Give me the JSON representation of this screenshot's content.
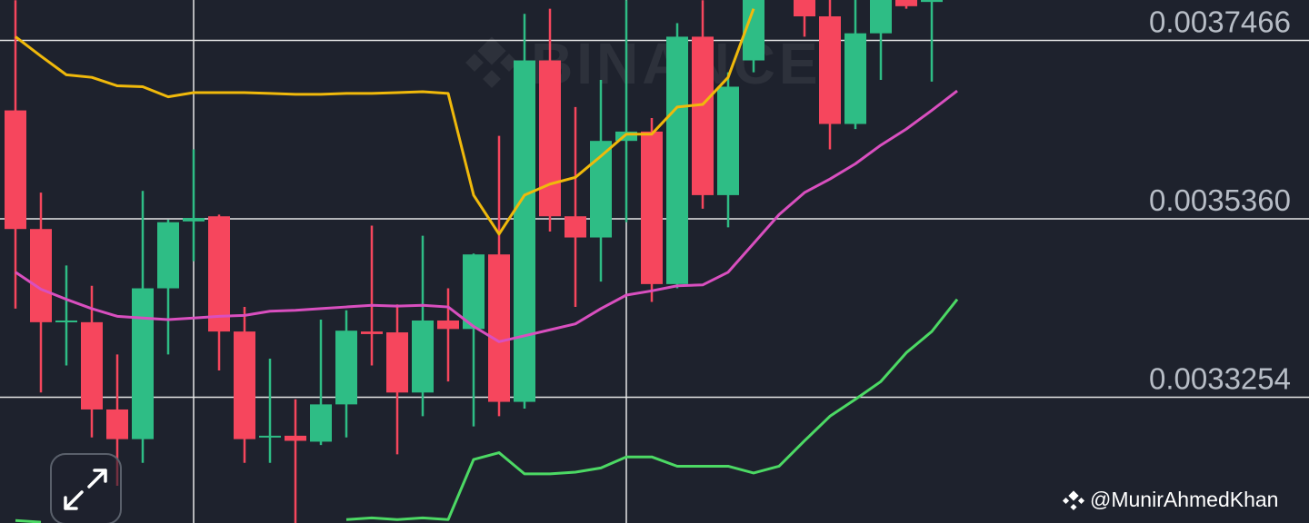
{
  "chart_data": {
    "type": "candlestick",
    "watermark": "BINANCE",
    "credit": "@MunirAhmedKhan",
    "categories": [
      null,
      null,
      null,
      null,
      null,
      null,
      null,
      null,
      null,
      null,
      null,
      null,
      null,
      null,
      null,
      null,
      null,
      null,
      null,
      null,
      null,
      null,
      null,
      null,
      null,
      null,
      null,
      null,
      null,
      null,
      null,
      null,
      null,
      null,
      null,
      null,
      null,
      null
    ],
    "candles": {
      "up_color": "#2ebd85",
      "down_color": "#f6465d",
      "open": [
        0.003664,
        0.003524,
        0.003414,
        0.003414,
        0.003311,
        0.003276,
        0.003454,
        0.003533,
        0.003539,
        0.003403,
        0.003278,
        0.00328,
        0.003273,
        0.003317,
        0.003403,
        0.003402,
        0.003331,
        0.003416,
        0.003406,
        0.003494,
        0.00332,
        0.003723,
        0.003539,
        0.003514,
        0.003628,
        0.003639,
        0.003459,
        0.003751,
        0.003564,
        0.003723,
        null,
        0.0038,
        0.003775,
        0.003648,
        0.003755,
        0.003798,
        0.003792,
        null
      ],
      "high": [
        0.003794,
        0.003567,
        0.003481,
        0.003457,
        0.003376,
        0.003569,
        0.003535,
        0.003618,
        0.003541,
        0.003432,
        0.003371,
        0.003323,
        0.003417,
        0.003428,
        0.003528,
        0.003435,
        0.003516,
        0.003454,
        0.003495,
        0.003634,
        0.003778,
        0.003784,
        0.003668,
        0.0037,
        0.003794,
        0.003655,
        0.003767,
        0.003794,
        0.003709,
        0.003805,
        null,
        0.003805,
        0.0038,
        0.0038,
        0.003805,
        0.003805,
        0.003805,
        null
      ],
      "low": [
        0.00343,
        0.003331,
        0.003363,
        0.003278,
        0.003221,
        0.003248,
        0.003376,
        0.003486,
        0.003357,
        0.003248,
        0.003248,
        0.003177,
        0.003269,
        0.003278,
        0.003363,
        0.003258,
        0.003303,
        0.003344,
        0.003291,
        0.003303,
        0.003312,
        0.003521,
        0.003432,
        0.003462,
        0.003532,
        0.003438,
        0.003454,
        0.003548,
        0.003526,
        0.003709,
        null,
        0.003751,
        0.003618,
        0.003642,
        0.0037,
        0.003784,
        0.003698,
        null
      ],
      "close": [
        0.003524,
        0.003414,
        0.003416,
        0.003311,
        0.003276,
        0.003454,
        0.003532,
        0.003537,
        0.003403,
        0.003276,
        0.00328,
        0.003274,
        0.003317,
        0.003404,
        0.0034,
        0.003331,
        0.003416,
        0.003406,
        0.003494,
        0.00332,
        0.003723,
        0.003539,
        0.003514,
        0.003628,
        0.003639,
        0.003459,
        0.003751,
        0.003564,
        0.003692,
        0.0038,
        null,
        0.003775,
        0.003648,
        0.003755,
        0.0038,
        0.003787,
        0.0038,
        null
      ]
    },
    "series": [
      {
        "color": "#f0b90b",
        "values": [
          0.003751,
          0.003728,
          0.003706,
          0.003703,
          0.003693,
          0.003692,
          0.00368,
          0.003685,
          0.003685,
          0.003685,
          0.003684,
          0.003683,
          0.003683,
          0.003684,
          0.003684,
          0.003685,
          0.003686,
          0.003684,
          0.003564,
          0.003518,
          0.003564,
          0.003577,
          0.003585,
          0.00361,
          0.003636,
          0.003636,
          0.003668,
          0.003671,
          0.003703,
          0.003784,
          null,
          null,
          null,
          null,
          null,
          null,
          null,
          null
        ]
      },
      {
        "color": "#d94fbf",
        "values": [
          0.003473,
          0.003453,
          0.003441,
          0.00343,
          0.003421,
          0.003419,
          0.003417,
          0.003419,
          0.003421,
          0.003422,
          0.003427,
          0.003428,
          0.00343,
          0.003432,
          0.003434,
          0.003433,
          0.003434,
          0.003432,
          0.003409,
          0.003391,
          0.003398,
          0.003405,
          0.003412,
          0.00343,
          0.003446,
          0.003451,
          0.003457,
          0.003458,
          0.003473,
          0.003507,
          0.003541,
          0.003567,
          0.003583,
          0.003601,
          0.003623,
          0.003642,
          0.003664,
          0.003687
        ]
      },
      {
        "color": "#4cd964",
        "values": [
          0.00318,
          0.003178,
          null,
          null,
          null,
          null,
          null,
          null,
          null,
          null,
          null,
          null,
          null,
          0.003181,
          0.003183,
          0.003181,
          0.003183,
          0.003181,
          0.003252,
          0.00326,
          0.003235,
          0.003235,
          0.003237,
          0.003242,
          0.003255,
          0.003255,
          0.003244,
          0.003244,
          0.003244,
          0.003236,
          0.003244,
          0.003274,
          0.003303,
          0.003323,
          0.003344,
          0.003378,
          0.003403,
          0.003441
        ]
      }
    ],
    "ylim": [
      0.003177,
      0.0037943
    ],
    "yticks": [
      0.0037466,
      {
        "value": 0.003536,
        "label": "0.0035360"
      },
      0.0033254
    ],
    "grid": true
  }
}
